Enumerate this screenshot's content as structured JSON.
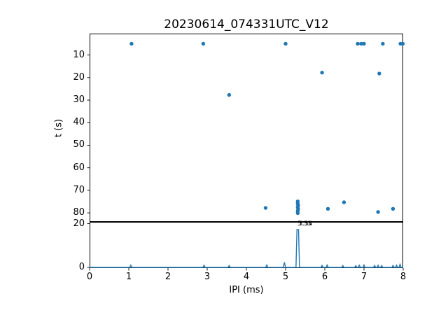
{
  "title": "20230614_074331UTC_V12",
  "colors": {
    "accent": "#1f77b4",
    "text": "#000000",
    "background": "#ffffff",
    "spine": "#000000"
  },
  "chart_data": [
    {
      "type": "scatter",
      "title": "20230614_074331UTC_V12",
      "xlabel": "",
      "ylabel": "t (s)",
      "xlim": [
        0,
        8
      ],
      "ylim": [
        0.5,
        84
      ],
      "y_inverted": true,
      "grid": false,
      "yticks": [
        10,
        20,
        30,
        40,
        50,
        60,
        70,
        80
      ],
      "marker_color": "#1f77b4",
      "points": [
        [
          1.07,
          5.0
        ],
        [
          2.9,
          5.0
        ],
        [
          5.0,
          5.0
        ],
        [
          6.84,
          5.0
        ],
        [
          6.93,
          5.0
        ],
        [
          7.0,
          5.0
        ],
        [
          7.48,
          5.0
        ],
        [
          7.93,
          5.0
        ],
        [
          7.99,
          5.0
        ],
        [
          5.93,
          17.8
        ],
        [
          7.39,
          18.2
        ],
        [
          3.56,
          27.7
        ],
        [
          4.49,
          77.8
        ],
        [
          5.31,
          74.9
        ],
        [
          5.31,
          75.9
        ],
        [
          5.32,
          76.7
        ],
        [
          5.31,
          77.5
        ],
        [
          5.32,
          78.3
        ],
        [
          5.31,
          79.1
        ],
        [
          5.31,
          80.1
        ],
        [
          6.08,
          78.2
        ],
        [
          6.49,
          75.3
        ],
        [
          7.36,
          79.6
        ],
        [
          7.74,
          78.2
        ]
      ]
    },
    {
      "type": "line",
      "xlabel": "IPI (ms)",
      "ylabel": "",
      "xlim": [
        0,
        8
      ],
      "ylim": [
        0,
        20.4
      ],
      "grid": false,
      "yticks": [
        0,
        20
      ],
      "xticks": [
        0,
        1,
        2,
        3,
        4,
        5,
        6,
        7,
        8
      ],
      "line_color": "#1f77b4",
      "peak_annotations": [
        {
          "text": "5.33",
          "x": 5.31,
          "y": 17.9
        },
        {
          "text": "5.34",
          "x": 5.35,
          "y": 17.9
        }
      ],
      "spikes": [
        [
          1.05,
          1.0
        ],
        [
          2.92,
          1.0
        ],
        [
          3.56,
          0.8
        ],
        [
          4.52,
          1.1
        ],
        [
          4.97,
          2.3
        ],
        [
          5.31,
          17.3
        ],
        [
          5.93,
          0.9
        ],
        [
          6.06,
          1.1
        ],
        [
          6.46,
          0.8
        ],
        [
          6.79,
          0.8
        ],
        [
          6.88,
          1.0
        ],
        [
          7.0,
          1.1
        ],
        [
          7.27,
          0.9
        ],
        [
          7.36,
          1.0
        ],
        [
          7.45,
          0.8
        ],
        [
          7.74,
          0.9
        ],
        [
          7.83,
          1.0
        ],
        [
          7.92,
          1.4
        ]
      ]
    }
  ]
}
